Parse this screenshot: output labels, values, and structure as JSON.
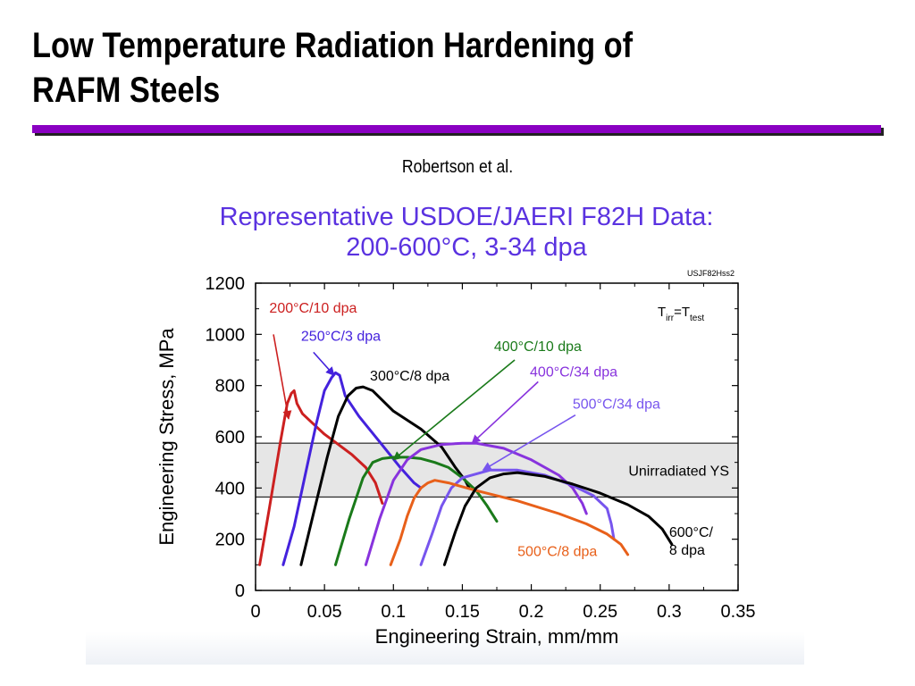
{
  "slide": {
    "title_lines": [
      "Low Temperature Radiation Hardening of",
      "RAFM Steels"
    ],
    "credit": "Robertson et al."
  },
  "colors": {
    "rule": "#8a00c2",
    "chart_title": "#5a32e0",
    "band": "#e6e6e6"
  },
  "chart_data": {
    "type": "line",
    "title": "Representative USDOE/JAERI F82H Data:",
    "subtitle": "200-600°C, 3-34 dpa",
    "xlabel": "Engineering Strain, mm/mm",
    "ylabel": "Engineering Stress, MPa",
    "xlim": [
      0,
      0.35
    ],
    "ylim": [
      0,
      1200
    ],
    "xticks": [
      0,
      0.05,
      0.1,
      0.15,
      0.2,
      0.25,
      0.3,
      0.35
    ],
    "xtick_labels": [
      "0",
      "0.05",
      "0.1",
      "0.15",
      "0.2",
      "0.25",
      "0.3",
      "0.35"
    ],
    "yticks": [
      0,
      200,
      400,
      600,
      800,
      1000,
      1200
    ],
    "ytick_labels": [
      "0",
      "200",
      "400",
      "600",
      "800",
      "1000",
      "1200"
    ],
    "grid": false,
    "figure_id": "USJF82Hss2",
    "condition_note": {
      "base": "T",
      "sub1": "irr",
      "mid": "=T",
      "sub2": "test"
    },
    "band": {
      "ymin": 365,
      "ymax": 575,
      "label": "Unirradiated YS"
    },
    "series": [
      {
        "name": "200°C/10 dpa",
        "color": "#cc2020",
        "x": [
          0.003,
          0.01,
          0.018,
          0.023,
          0.026,
          0.028,
          0.03,
          0.034,
          0.04,
          0.05,
          0.06,
          0.07,
          0.08,
          0.087,
          0.092
        ],
        "y": [
          100,
          320,
          580,
          730,
          770,
          780,
          730,
          690,
          660,
          610,
          570,
          530,
          480,
          420,
          340
        ]
      },
      {
        "name": "250°C/3 dpa",
        "color": "#4422dd",
        "x": [
          0.02,
          0.028,
          0.036,
          0.044,
          0.05,
          0.055,
          0.058,
          0.061,
          0.065,
          0.075,
          0.09,
          0.105,
          0.115,
          0.12
        ],
        "y": [
          100,
          250,
          450,
          650,
          780,
          830,
          850,
          840,
          760,
          680,
          580,
          480,
          420,
          400
        ]
      },
      {
        "name": "300°C/8 dpa",
        "color": "#000000",
        "x": [
          0.033,
          0.042,
          0.052,
          0.06,
          0.067,
          0.073,
          0.078,
          0.085,
          0.1,
          0.12,
          0.135,
          0.145,
          0.152,
          0.155
        ],
        "y": [
          100,
          300,
          520,
          680,
          760,
          790,
          795,
          780,
          700,
          630,
          560,
          480,
          430,
          400
        ]
      },
      {
        "name": "400°C/10 dpa",
        "color": "#1a7a1a",
        "x": [
          0.058,
          0.068,
          0.078,
          0.085,
          0.092,
          0.1,
          0.11,
          0.12,
          0.13,
          0.14,
          0.15,
          0.16,
          0.168,
          0.175
        ],
        "y": [
          100,
          280,
          440,
          500,
          515,
          520,
          520,
          515,
          500,
          480,
          440,
          390,
          330,
          270
        ]
      },
      {
        "name": "400°C/34 dpa",
        "color": "#8833dd",
        "x": [
          0.08,
          0.09,
          0.1,
          0.11,
          0.12,
          0.135,
          0.15,
          0.16,
          0.18,
          0.2,
          0.22,
          0.23,
          0.237,
          0.24
        ],
        "y": [
          100,
          280,
          430,
          510,
          550,
          570,
          575,
          575,
          555,
          510,
          450,
          400,
          340,
          300
        ]
      },
      {
        "name": "500°C/34 dpa",
        "color": "#7755ee",
        "x": [
          0.12,
          0.128,
          0.135,
          0.142,
          0.15,
          0.17,
          0.19,
          0.21,
          0.23,
          0.245,
          0.255,
          0.258,
          0.26
        ],
        "y": [
          100,
          220,
          330,
          400,
          440,
          470,
          470,
          450,
          410,
          370,
          320,
          260,
          200
        ]
      },
      {
        "name": "500°C/8 dpa",
        "color": "#e8601a",
        "x": [
          0.098,
          0.105,
          0.11,
          0.115,
          0.12,
          0.125,
          0.13,
          0.14,
          0.16,
          0.19,
          0.22,
          0.24,
          0.255,
          0.265,
          0.27
        ],
        "y": [
          100,
          200,
          290,
          360,
          400,
          420,
          430,
          420,
          390,
          350,
          300,
          260,
          220,
          180,
          140
        ]
      },
      {
        "name": "600°C/8 dpa",
        "color": "#000000",
        "x": [
          0.137,
          0.145,
          0.152,
          0.16,
          0.17,
          0.18,
          0.19,
          0.21,
          0.23,
          0.25,
          0.27,
          0.285,
          0.295,
          0.302
        ],
        "y": [
          100,
          230,
          330,
          400,
          440,
          455,
          460,
          445,
          415,
          380,
          335,
          290,
          240,
          180
        ]
      }
    ],
    "annotations": [
      {
        "series": 0,
        "text": "200°C/10 dpa",
        "lines": [
          "200°C/10 dpa"
        ],
        "color": "#cc2020",
        "arrow": true,
        "text_at": [
          0.01,
          1085
        ],
        "arrow_from": [
          0.013,
          1000
        ],
        "arrow_to": [
          0.024,
          670
        ]
      },
      {
        "series": 1,
        "text": "250°C/3 dpa",
        "lines": [
          "250°C/3 dpa"
        ],
        "color": "#4422dd",
        "arrow": true,
        "text_at": [
          0.033,
          975
        ],
        "arrow_from": [
          0.042,
          930
        ],
        "arrow_to": [
          0.057,
          840
        ]
      },
      {
        "series": 2,
        "text": "300°C/8 dpa",
        "lines": [
          "300°C/8 dpa"
        ],
        "color": "#000000",
        "arrow": false,
        "text_at": [
          0.083,
          820
        ]
      },
      {
        "series": 3,
        "text": "400°C/10 dpa",
        "lines": [
          "400°C/10 dpa"
        ],
        "color": "#1a7a1a",
        "arrow": true,
        "text_at": [
          0.173,
          935
        ],
        "arrow_from": [
          0.188,
          900
        ],
        "arrow_to": [
          0.1,
          510
        ]
      },
      {
        "series": 4,
        "text": "400°C/34 dpa",
        "lines": [
          "400°C/34 dpa"
        ],
        "color": "#8833dd",
        "arrow": true,
        "text_at": [
          0.199,
          835
        ],
        "arrow_from": [
          0.205,
          815
        ],
        "arrow_to": [
          0.157,
          575
        ]
      },
      {
        "series": 5,
        "text": "500°C/34 dpa",
        "lines": [
          "500°C/34 dpa"
        ],
        "color": "#7755ee",
        "arrow": true,
        "text_at": [
          0.23,
          710
        ],
        "arrow_from": [
          0.232,
          685
        ],
        "arrow_to": [
          0.165,
          470
        ]
      },
      {
        "series": 6,
        "text": "500°C/8 dpa",
        "lines": [
          "500°C/8 dpa"
        ],
        "color": "#e8601a",
        "arrow": false,
        "text_at": [
          0.19,
          135
        ]
      },
      {
        "series": 7,
        "text": "600°C/8 dpa",
        "lines": [
          "600°C/",
          "8 dpa"
        ],
        "color": "#000000",
        "arrow": false,
        "text_at": [
          0.3,
          210
        ]
      }
    ]
  }
}
